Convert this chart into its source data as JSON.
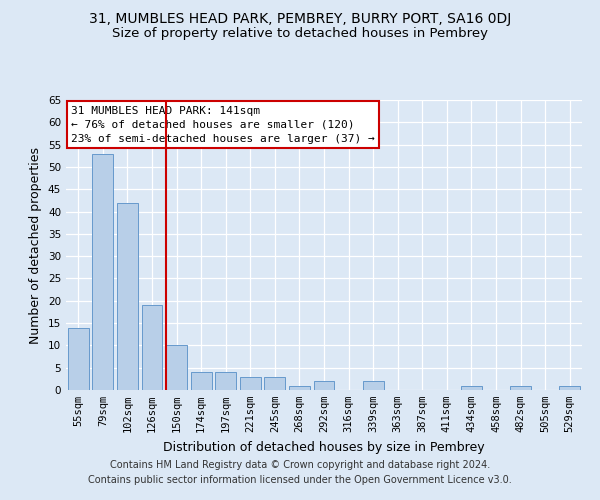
{
  "title": "31, MUMBLES HEAD PARK, PEMBREY, BURRY PORT, SA16 0DJ",
  "subtitle": "Size of property relative to detached houses in Pembrey",
  "xlabel": "Distribution of detached houses by size in Pembrey",
  "ylabel": "Number of detached properties",
  "categories": [
    "55sqm",
    "79sqm",
    "102sqm",
    "126sqm",
    "150sqm",
    "174sqm",
    "197sqm",
    "221sqm",
    "245sqm",
    "268sqm",
    "292sqm",
    "316sqm",
    "339sqm",
    "363sqm",
    "387sqm",
    "411sqm",
    "434sqm",
    "458sqm",
    "482sqm",
    "505sqm",
    "529sqm"
  ],
  "values": [
    14,
    53,
    42,
    19,
    10,
    4,
    4,
    3,
    3,
    1,
    2,
    0,
    2,
    0,
    0,
    0,
    1,
    0,
    1,
    0,
    1
  ],
  "bar_color": "#b8cfe8",
  "bar_edge_color": "#6699cc",
  "property_line_index": 4,
  "annotation_title": "31 MUMBLES HEAD PARK: 141sqm",
  "annotation_line1": "← 76% of detached houses are smaller (120)",
  "annotation_line2": "23% of semi-detached houses are larger (37) →",
  "annotation_box_color": "#ffffff",
  "annotation_box_edge": "#cc0000",
  "vline_color": "#cc0000",
  "bg_color": "#dce8f5",
  "grid_color": "#ffffff",
  "ylim": [
    0,
    65
  ],
  "yticks": [
    0,
    5,
    10,
    15,
    20,
    25,
    30,
    35,
    40,
    45,
    50,
    55,
    60,
    65
  ],
  "footer1": "Contains HM Land Registry data © Crown copyright and database right 2024.",
  "footer2": "Contains public sector information licensed under the Open Government Licence v3.0.",
  "title_fontsize": 10,
  "subtitle_fontsize": 9.5,
  "axis_label_fontsize": 9,
  "tick_fontsize": 7.5,
  "annotation_fontsize": 8,
  "footer_fontsize": 7
}
